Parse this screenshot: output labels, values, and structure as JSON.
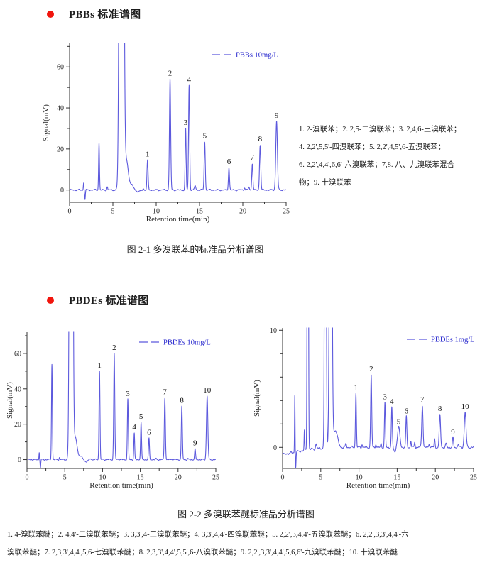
{
  "page_bg": "#ffffff",
  "text_color": "#1c1c1c",
  "section1": {
    "bullet_color": "#f1150d",
    "heading": "PBBs 标准谱图",
    "annotation": "1. 2-溴联苯；2. 2,5-二溴联苯；3. 2,4,6-三溴联苯；\n4. 2,2',5,5'-四溴联苯；5. 2,2',4,5',6-五溴联苯；\n6. 2,2',4,4',6,6'-六溴联苯；7,8. 八、九溴联苯混合\n物；9. 十溴联苯",
    "caption": "图 2-1  多溴联苯的标准品分析谱图"
  },
  "section2": {
    "bullet_color": "#f1150d",
    "heading": "PBDEs 标准谱图",
    "caption": "图 2-2  多溴联苯醚标准品分析谱图",
    "footnote": "1. 4-溴联苯醚；2. 4,4'-二溴联苯醚；3. 3,3',4-三溴联苯醚；4. 3,3',4,4'-四溴联苯醚；5. 2,2',3,4,4'-五溴联苯醚；6. 2,2',3,3',4,4'-六\n溴联苯醚；7. 2,3,3',4,4',5,6-七溴联苯醚；8. 2,3,3',4,4',5,5',6-八溴联苯醚；9. 2,2',3,3',4,4',5,6,6'-九溴联苯醚；10. 十溴联苯醚"
  },
  "chart_data": [
    {
      "type": "line",
      "legend": "PBBs 10mg/L",
      "line_color": "#5c59dd",
      "legend_text_color": "#2424cd",
      "xlabel": "Retention time(min)",
      "ylabel": "Signal(mV)",
      "xlim": [
        0,
        25
      ],
      "ylim": [
        -6,
        71.5
      ],
      "xticks": [
        0,
        5,
        10,
        15,
        20,
        25
      ],
      "yticks": [
        0,
        20,
        40,
        60
      ],
      "x_minor_step": 2.5,
      "y_minor_step": 10,
      "noise_mv": 0.22,
      "peaks": [
        {
          "label": "1",
          "rt": 9.0,
          "mv": 14.5,
          "w": 0.09
        },
        {
          "label": "2",
          "rt": 11.6,
          "mv": 54,
          "w": 0.1
        },
        {
          "label": "3",
          "rt": 13.4,
          "mv": 30,
          "w": 0.08
        },
        {
          "label": "4",
          "rt": 13.8,
          "mv": 51,
          "w": 0.09
        },
        {
          "label": "5",
          "rt": 15.6,
          "mv": 23.5,
          "w": 0.09
        },
        {
          "label": "6",
          "rt": 18.4,
          "mv": 11,
          "w": 0.09
        },
        {
          "label": "7",
          "rt": 21.1,
          "mv": 13,
          "w": 0.09
        },
        {
          "label": "8",
          "rt": 22.0,
          "mv": 22,
          "w": 0.1
        },
        {
          "label": "9",
          "rt": 23.9,
          "mv": 33.5,
          "w": 0.13
        }
      ],
      "baseline_features": [
        {
          "rt": 1.62,
          "mv": 3.5,
          "w": 0.05
        },
        {
          "rt": 1.78,
          "mv": -4.5,
          "w": 0.06
        },
        {
          "rt": 3.4,
          "mv": 23,
          "w": 0.07
        },
        {
          "rt": 4.35,
          "mv": 1.5,
          "w": 0.07
        },
        {
          "rt": 6.0,
          "mv": 900,
          "w": 0.22
        },
        {
          "rt": 6.55,
          "mv": 14,
          "w": 0.3
        },
        {
          "rt": 7.1,
          "mv": 2.5,
          "w": 0.4
        },
        {
          "rt": 7.9,
          "mv": -0.8,
          "w": 0.45
        },
        {
          "rt": 8.5,
          "mv": 0.8,
          "w": 0.1
        },
        {
          "rt": 14.5,
          "mv": 2.2,
          "w": 0.1
        },
        {
          "rt": 20.2,
          "mv": 1.2,
          "w": 0.08
        },
        {
          "rt": 20.7,
          "mv": 1.4,
          "w": 0.08
        }
      ]
    },
    {
      "type": "line",
      "legend": "PBDEs 10mg/L",
      "line_color": "#5c59dd",
      "legend_text_color": "#2424cd",
      "xlabel": "Retention time(min)",
      "ylabel": "Signal(mV)",
      "xlim": [
        0,
        25
      ],
      "ylim": [
        -5,
        72
      ],
      "xticks": [
        0,
        5,
        10,
        15,
        20,
        25
      ],
      "yticks": [
        0,
        20,
        40,
        60
      ],
      "x_minor_step": 2.5,
      "y_minor_step": 10,
      "noise_mv": 0.22,
      "peaks": [
        {
          "label": "1",
          "rt": 9.6,
          "mv": 50,
          "w": 0.09
        },
        {
          "label": "2",
          "rt": 11.55,
          "mv": 60,
          "w": 0.1
        },
        {
          "label": "3",
          "rt": 13.35,
          "mv": 34,
          "w": 0.09
        },
        {
          "label": "4",
          "rt": 14.2,
          "mv": 15,
          "w": 0.08
        },
        {
          "label": "5",
          "rt": 15.1,
          "mv": 21,
          "w": 0.09
        },
        {
          "label": "6",
          "rt": 16.15,
          "mv": 12,
          "w": 0.09
        },
        {
          "label": "7",
          "rt": 18.25,
          "mv": 35,
          "w": 0.1
        },
        {
          "label": "8",
          "rt": 20.5,
          "mv": 30,
          "w": 0.1
        },
        {
          "label": "9",
          "rt": 22.25,
          "mv": 6,
          "w": 0.09
        },
        {
          "label": "10",
          "rt": 23.85,
          "mv": 36,
          "w": 0.13
        }
      ],
      "baseline_features": [
        {
          "rt": 1.62,
          "mv": 4,
          "w": 0.05
        },
        {
          "rt": 1.78,
          "mv": -4.5,
          "w": 0.06
        },
        {
          "rt": 3.3,
          "mv": 54,
          "w": 0.08
        },
        {
          "rt": 4.3,
          "mv": 1.2,
          "w": 0.07
        },
        {
          "rt": 5.85,
          "mv": 900,
          "w": 0.2
        },
        {
          "rt": 6.4,
          "mv": 12,
          "w": 0.3
        },
        {
          "rt": 7.0,
          "mv": 2.0,
          "w": 0.45
        },
        {
          "rt": 7.8,
          "mv": -1.2,
          "w": 0.35
        },
        {
          "rt": 8.4,
          "mv": 0.7,
          "w": 0.1
        },
        {
          "rt": 12.1,
          "mv": 0.5,
          "w": 0.08
        },
        {
          "rt": 17.1,
          "mv": 0.5,
          "w": 0.08
        },
        {
          "rt": 19.2,
          "mv": 0.4,
          "w": 0.08
        },
        {
          "rt": 21.3,
          "mv": 0.5,
          "w": 0.08
        }
      ]
    },
    {
      "type": "line",
      "legend": "PBDEs 1mg/L",
      "line_color": "#5c59dd",
      "legend_text_color": "#2424cd",
      "xlabel": "Retention time(min)",
      "ylabel": "Signal(mV)",
      "xlim": [
        0,
        25
      ],
      "ylim": [
        -1.8,
        10.2
      ],
      "xticks": [
        0,
        5,
        10,
        15,
        20,
        25
      ],
      "yticks": [
        0,
        10
      ],
      "x_minor_step": 2.5,
      "y_minor_step": 2,
      "noise_mv": 0.06,
      "peaks": [
        {
          "label": "1",
          "rt": 9.6,
          "mv": 4.6,
          "w": 0.09
        },
        {
          "label": "2",
          "rt": 11.6,
          "mv": 6.2,
          "w": 0.1
        },
        {
          "label": "3",
          "rt": 13.4,
          "mv": 3.8,
          "w": 0.09
        },
        {
          "label": "4",
          "rt": 14.3,
          "mv": 3.4,
          "w": 0.09
        },
        {
          "label": "5",
          "rt": 15.2,
          "mv": 1.7,
          "w": 0.22
        },
        {
          "label": "6",
          "rt": 16.2,
          "mv": 2.6,
          "w": 0.1
        },
        {
          "label": "7",
          "rt": 18.3,
          "mv": 3.6,
          "w": 0.12
        },
        {
          "label": "8",
          "rt": 20.6,
          "mv": 2.8,
          "w": 0.12
        },
        {
          "label": "9",
          "rt": 22.3,
          "mv": 0.8,
          "w": 0.1
        },
        {
          "label": "10",
          "rt": 23.9,
          "mv": 3.0,
          "w": 0.16
        }
      ],
      "baseline_features": [
        {
          "rt": -1.2,
          "mv": -0.65,
          "w": 4.2
        },
        {
          "rt": 1.6,
          "mv": 5,
          "w": 0.05
        },
        {
          "rt": 1.72,
          "mv": -1.3,
          "w": 0.06
        },
        {
          "rt": 2.85,
          "mv": 1.7,
          "w": 0.05
        },
        {
          "rt": 3.3,
          "mv": 60,
          "w": 0.09
        },
        {
          "rt": 4.4,
          "mv": 0.4,
          "w": 0.1
        },
        {
          "rt": 5.6,
          "mv": 60,
          "w": 0.12
        },
        {
          "rt": 6.3,
          "mv": 60,
          "w": 0.18
        },
        {
          "rt": 6.9,
          "mv": 1.5,
          "w": 0.4
        },
        {
          "rt": 8.3,
          "mv": 0.3,
          "w": 0.1
        },
        {
          "rt": 10.4,
          "mv": 0.25,
          "w": 0.08
        },
        {
          "rt": 12.2,
          "mv": 0.3,
          "w": 0.08
        },
        {
          "rt": 12.9,
          "mv": 0.35,
          "w": 0.08
        },
        {
          "rt": 14.7,
          "mv": -0.4,
          "w": 0.15
        },
        {
          "rt": 16.8,
          "mv": 0.5,
          "w": 0.08
        },
        {
          "rt": 17.3,
          "mv": 0.45,
          "w": 0.08
        },
        {
          "rt": 19.2,
          "mv": 0.3,
          "w": 0.1
        },
        {
          "rt": 19.9,
          "mv": 0.7,
          "w": 0.08
        },
        {
          "rt": 21.4,
          "mv": 0.3,
          "w": 0.1
        },
        {
          "rt": 23.0,
          "mv": 0.3,
          "w": 0.1
        }
      ]
    }
  ]
}
